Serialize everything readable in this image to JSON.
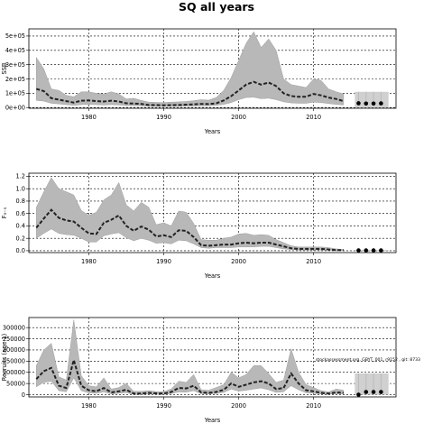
{
  "chart_data": [
    {
      "type": "area",
      "title": "SQ all years",
      "xlabel": "Years",
      "ylabel": "SSB",
      "xlim": [
        1972,
        2021
      ],
      "ylim": [
        -5000,
        550000
      ],
      "xticks": [
        1980,
        1990,
        2000,
        2010
      ],
      "yticks": [
        0,
        100000,
        200000,
        300000,
        400000,
        500000
      ],
      "ytick_labels": [
        "0e+00",
        "1e+05",
        "2e+05",
        "3e+05",
        "4e+05",
        "5e+05"
      ],
      "grid": true,
      "x": [
        1973,
        1974,
        1975,
        1976,
        1977,
        1978,
        1979,
        1980,
        1981,
        1982,
        1983,
        1984,
        1985,
        1986,
        1987,
        1988,
        1989,
        1990,
        1991,
        1992,
        1993,
        1994,
        1995,
        1996,
        1997,
        1998,
        1999,
        2000,
        2001,
        2002,
        2003,
        2004,
        2005,
        2006,
        2007,
        2008,
        2009,
        2010,
        2011,
        2012,
        2013,
        2014
      ],
      "series": [
        {
          "values": [
            130000,
            115000,
            65000,
            55000,
            45000,
            35000,
            48000,
            50000,
            45000,
            42000,
            48000,
            42000,
            30000,
            28000,
            25000,
            18000,
            17000,
            16000,
            17000,
            18000,
            20000,
            22000,
            25000,
            24000,
            30000,
            50000,
            80000,
            120000,
            160000,
            180000,
            160000,
            175000,
            150000,
            100000,
            80000,
            75000,
            75000,
            95000,
            85000,
            70000,
            60000,
            45000
          ]
        },
        {
          "name": "upper",
          "values": [
            350000,
            270000,
            130000,
            120000,
            85000,
            75000,
            110000,
            110000,
            100000,
            95000,
            110000,
            95000,
            60000,
            65000,
            50000,
            38000,
            36000,
            35000,
            38000,
            40000,
            42000,
            48000,
            55000,
            52000,
            70000,
            120000,
            210000,
            330000,
            450000,
            530000,
            420000,
            480000,
            400000,
            200000,
            160000,
            150000,
            140000,
            200000,
            190000,
            130000,
            110000,
            95000
          ]
        },
        {
          "name": "lower",
          "values": [
            50000,
            45000,
            30000,
            25000,
            20000,
            15000,
            20000,
            22000,
            20000,
            18000,
            20000,
            18000,
            14000,
            13000,
            12000,
            8000,
            8000,
            8000,
            8000,
            9000,
            10000,
            11000,
            12000,
            12000,
            15000,
            22000,
            35000,
            55000,
            70000,
            72000,
            62000,
            65000,
            55000,
            40000,
            32000,
            30000,
            30000,
            38000,
            35000,
            28000,
            22000,
            18000
          ]
        },
        {
          "name": "projection",
          "values": [
            [
              2016,
              30000
            ],
            [
              2017,
              28000
            ],
            [
              2018,
              28000
            ],
            [
              2019,
              29000
            ]
          ]
        }
      ]
    },
    {
      "type": "area",
      "xlabel": "Years",
      "ylabel": "F₃₋₅",
      "xlim": [
        1972,
        2021
      ],
      "ylim": [
        -0.03,
        1.25
      ],
      "xticks": [
        1980,
        1990,
        2000,
        2010
      ],
      "yticks": [
        0.0,
        0.2,
        0.4,
        0.6,
        0.8,
        1.0,
        1.2
      ],
      "ytick_labels": [
        "0.0",
        "0.2",
        "0.4",
        "0.6",
        "0.8",
        "1.0",
        "1.2"
      ],
      "grid": true,
      "x": [
        1973,
        1974,
        1975,
        1976,
        1977,
        1978,
        1979,
        1980,
        1981,
        1982,
        1983,
        1984,
        1985,
        1986,
        1987,
        1988,
        1989,
        1990,
        1991,
        1992,
        1993,
        1994,
        1995,
        1996,
        1997,
        1998,
        1999,
        2000,
        2001,
        2002,
        2003,
        2004,
        2005,
        2006,
        2007,
        2008,
        2009,
        2010,
        2011,
        2012,
        2013,
        2014
      ],
      "series": [
        {
          "values": [
            0.37,
            0.52,
            0.66,
            0.53,
            0.49,
            0.47,
            0.37,
            0.28,
            0.27,
            0.45,
            0.5,
            0.57,
            0.4,
            0.32,
            0.39,
            0.34,
            0.23,
            0.25,
            0.22,
            0.33,
            0.32,
            0.22,
            0.09,
            0.08,
            0.09,
            0.1,
            0.1,
            0.12,
            0.13,
            0.12,
            0.13,
            0.13,
            0.1,
            0.07,
            0.04,
            0.03,
            0.03,
            0.03,
            0.03,
            0.02,
            0.01,
            0.01
          ]
        },
        {
          "name": "upper",
          "values": [
            0.7,
            0.95,
            1.18,
            1.0,
            0.95,
            0.9,
            0.65,
            0.57,
            0.62,
            0.82,
            0.9,
            1.1,
            0.74,
            0.64,
            0.78,
            0.7,
            0.42,
            0.45,
            0.4,
            0.64,
            0.62,
            0.44,
            0.18,
            0.17,
            0.17,
            0.2,
            0.22,
            0.27,
            0.28,
            0.25,
            0.26,
            0.25,
            0.18,
            0.13,
            0.08,
            0.06,
            0.06,
            0.06,
            0.06,
            0.05,
            0.03,
            0.02
          ]
        },
        {
          "name": "lower",
          "values": [
            0.2,
            0.28,
            0.35,
            0.28,
            0.26,
            0.25,
            0.2,
            0.14,
            0.14,
            0.24,
            0.27,
            0.29,
            0.21,
            0.16,
            0.2,
            0.17,
            0.12,
            0.13,
            0.11,
            0.17,
            0.16,
            0.11,
            0.05,
            0.04,
            0.05,
            0.05,
            0.05,
            0.06,
            0.06,
            0.06,
            0.07,
            0.07,
            0.05,
            0.03,
            0.02,
            0.01,
            0.01,
            0.01,
            0.01,
            0.01,
            0.0,
            0.0
          ]
        },
        {
          "name": "projection",
          "values": [
            [
              2016,
              0.005
            ],
            [
              2017,
              0.005
            ],
            [
              2018,
              0.005
            ],
            [
              2019,
              0.005
            ]
          ]
        }
      ]
    },
    {
      "type": "area",
      "xlabel": "Years",
      "ylabel": "Recruits (age 1)",
      "xlim": [
        1972,
        2021
      ],
      "ylim": [
        -10000,
        345000
      ],
      "xticks": [
        1980,
        1990,
        2000,
        2010
      ],
      "yticks": [
        0,
        50000,
        100000,
        150000,
        200000,
        250000,
        300000
      ],
      "ytick_labels": [
        "0",
        "50000",
        "100000",
        "150000",
        "200000",
        "250000",
        "300000"
      ],
      "grid": true,
      "annotation": "stockassessment.org, GBYT_001, r9152 , git: 8733",
      "x": [
        1973,
        1974,
        1975,
        1976,
        1977,
        1978,
        1979,
        1980,
        1981,
        1982,
        1983,
        1984,
        1985,
        1986,
        1987,
        1988,
        1989,
        1990,
        1991,
        1992,
        1993,
        1994,
        1995,
        1996,
        1997,
        1998,
        1999,
        2000,
        2001,
        2002,
        2003,
        2004,
        2005,
        2006,
        2007,
        2008,
        2009,
        2010,
        2011,
        2012,
        2013,
        2014
      ],
      "series": [
        {
          "values": [
            70000,
            105000,
            120000,
            40000,
            30000,
            155000,
            40000,
            20000,
            15000,
            30000,
            10000,
            15000,
            22000,
            5000,
            5000,
            8000,
            6000,
            5000,
            12000,
            30000,
            28000,
            40000,
            10000,
            8000,
            12000,
            22000,
            50000,
            35000,
            45000,
            55000,
            60000,
            50000,
            25000,
            30000,
            95000,
            50000,
            20000,
            15000,
            8000,
            5000,
            10000,
            8000
          ]
        },
        {
          "name": "upper",
          "values": [
            130000,
            200000,
            230000,
            80000,
            65000,
            335000,
            85000,
            40000,
            35000,
            75000,
            25000,
            32000,
            50000,
            15000,
            15000,
            18000,
            14000,
            13000,
            26000,
            60000,
            55000,
            90000,
            22000,
            20000,
            32000,
            45000,
            100000,
            75000,
            90000,
            130000,
            130000,
            95000,
            55000,
            65000,
            205000,
            100000,
            45000,
            32000,
            18000,
            12000,
            25000,
            20000
          ]
        },
        {
          "name": "lower",
          "values": [
            35000,
            55000,
            60000,
            18000,
            13000,
            75000,
            18000,
            8000,
            6000,
            12000,
            3000,
            6000,
            9000,
            1000,
            1000,
            3000,
            2000,
            1000,
            5000,
            12000,
            11000,
            18000,
            4000,
            3000,
            5000,
            10000,
            25000,
            16000,
            20000,
            25000,
            30000,
            22000,
            10000,
            13000,
            40000,
            22000,
            8000,
            6000,
            3000,
            2000,
            4000,
            3000
          ]
        },
        {
          "name": "projection",
          "values": [
            [
              2016,
              0
            ],
            [
              2017,
              12000
            ],
            [
              2018,
              12000
            ],
            [
              2019,
              12000
            ]
          ]
        }
      ]
    }
  ]
}
